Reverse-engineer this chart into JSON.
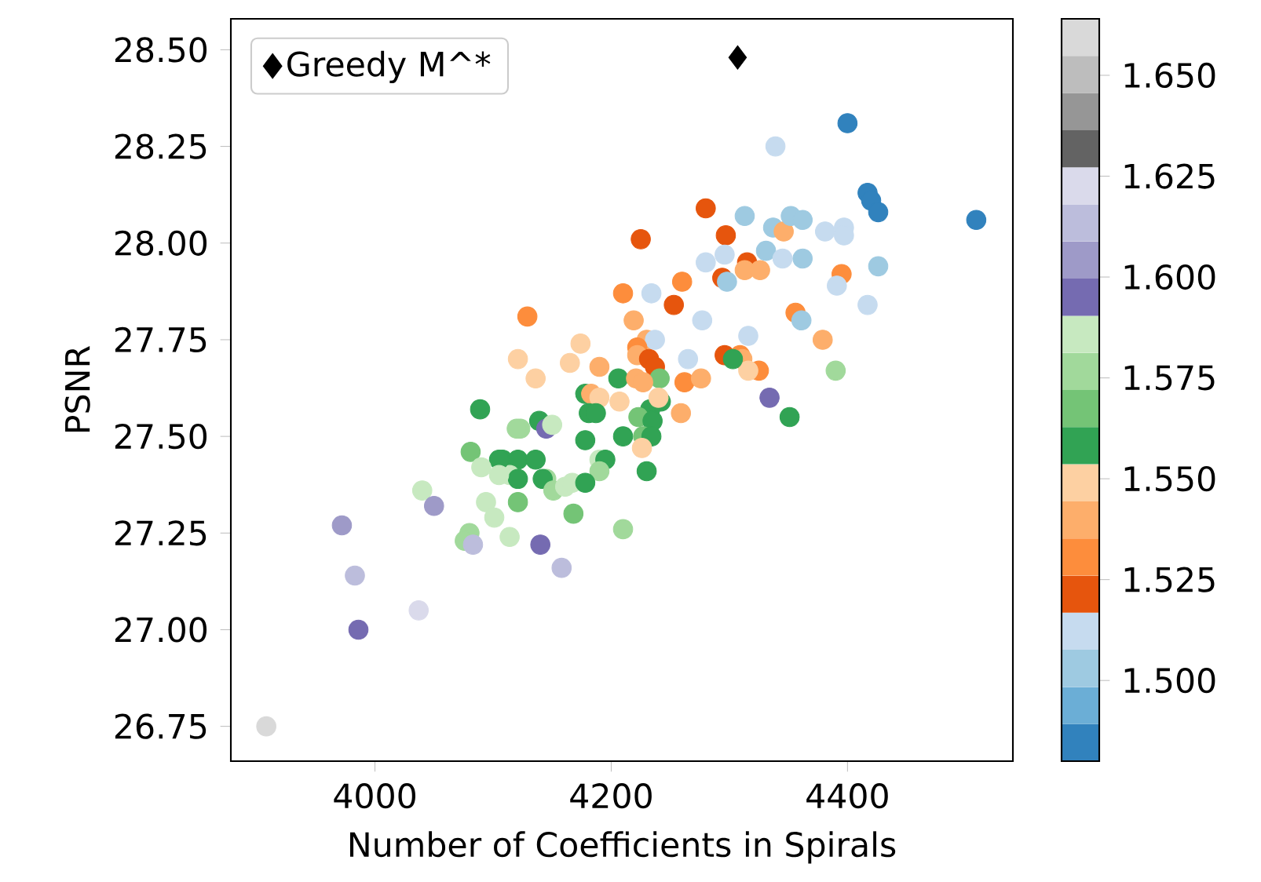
{
  "chart_data": {
    "type": "scatter",
    "xlabel": "Number of Coefficients in Spirals",
    "ylabel": "PSNR",
    "xlim": [
      3878,
      4540
    ],
    "ylim": [
      26.66,
      28.58
    ],
    "xticks": [
      4000,
      4200,
      4400
    ],
    "yticks": [
      {
        "value": 26.75,
        "label": "26.75"
      },
      {
        "value": 27.0,
        "label": "27.00"
      },
      {
        "value": 27.25,
        "label": "27.25"
      },
      {
        "value": 27.5,
        "label": "27.50"
      },
      {
        "value": 27.75,
        "label": "27.75"
      },
      {
        "value": 28.0,
        "label": "28.00"
      },
      {
        "value": 28.25,
        "label": "28.25"
      },
      {
        "value": 28.5,
        "label": "28.50"
      }
    ],
    "clim": [
      1.48,
      1.664
    ],
    "cticks": [
      {
        "value": 1.5,
        "label": "1.500"
      },
      {
        "value": 1.525,
        "label": "1.525"
      },
      {
        "value": 1.55,
        "label": "1.550"
      },
      {
        "value": 1.575,
        "label": "1.575"
      },
      {
        "value": 1.6,
        "label": "1.600"
      },
      {
        "value": 1.625,
        "label": "1.625"
      },
      {
        "value": 1.65,
        "label": "1.650"
      }
    ],
    "marker": "circle",
    "legend": "top left",
    "grid": false,
    "series": [
      {
        "type": "scatter",
        "x": [
          4400,
          4339,
          4417,
          4420,
          4426,
          4509,
          4280,
          4313,
          4225,
          4297,
          4337,
          4346,
          4352,
          4362,
          4381,
          4397,
          4397,
          4331,
          4345,
          4362,
          4395,
          4391,
          4426,
          4417,
          4280,
          4296,
          4315,
          4313,
          4326,
          4294,
          4298,
          4260,
          4210,
          4234,
          4253,
          4219,
          4129,
          4277,
          4356,
          4361,
          4379,
          4316,
          4174,
          4121,
          4165,
          4190,
          4136,
          4230,
          4237,
          4222,
          4222,
          4232,
          4237,
          4265,
          4296,
          4309,
          4311,
          4325,
          4316,
          4303,
          4390,
          4241,
          4206,
          4221,
          4227,
          4262,
          4276,
          4334,
          4351,
          4178,
          4183,
          4190,
          4207,
          4242,
          4233,
          4259,
          4181,
          4187,
          4223,
          4235,
          4139,
          4123,
          4145,
          4240,
          4150,
          4178,
          4210,
          4227,
          4234,
          4226,
          4108,
          4121,
          4136,
          4190,
          4195,
          4190,
          4230,
          4114,
          4121,
          4145,
          4142,
          4151,
          4161,
          4167,
          4178,
          4121,
          4168,
          4210,
          4114,
          4140,
          4158,
          4089,
          4120,
          4081,
          4105,
          4090,
          4105,
          4040,
          4050,
          4094,
          4101,
          4080,
          4076,
          4083,
          3972,
          3983,
          4037,
          3986,
          3908
        ],
        "values": [
          28.31,
          28.25,
          28.13,
          28.11,
          28.08,
          28.06,
          28.09,
          28.07,
          28.01,
          28.02,
          28.04,
          28.03,
          28.07,
          28.06,
          28.03,
          28.04,
          28.02,
          27.98,
          27.96,
          27.96,
          27.92,
          27.89,
          27.94,
          27.84,
          27.95,
          27.97,
          27.95,
          27.93,
          27.93,
          27.91,
          27.9,
          27.9,
          27.87,
          27.87,
          27.84,
          27.8,
          27.81,
          27.8,
          27.82,
          27.8,
          27.75,
          27.76,
          27.74,
          27.7,
          27.69,
          27.68,
          27.65,
          27.75,
          27.75,
          27.73,
          27.71,
          27.7,
          27.68,
          27.7,
          27.71,
          27.71,
          27.7,
          27.67,
          27.67,
          27.7,
          27.67,
          27.65,
          27.65,
          27.65,
          27.64,
          27.64,
          27.65,
          27.6,
          27.55,
          27.61,
          27.61,
          27.6,
          27.59,
          27.59,
          27.57,
          27.56,
          27.56,
          27.56,
          27.55,
          27.54,
          27.54,
          27.52,
          27.52,
          27.6,
          27.53,
          27.49,
          27.5,
          27.5,
          27.5,
          27.47,
          27.44,
          27.44,
          27.44,
          27.44,
          27.44,
          27.41,
          27.41,
          27.4,
          27.39,
          27.39,
          27.39,
          27.36,
          27.37,
          27.38,
          27.38,
          27.33,
          27.3,
          27.26,
          27.24,
          27.22,
          27.16,
          27.57,
          27.52,
          27.46,
          27.44,
          27.42,
          27.4,
          27.36,
          27.32,
          27.33,
          27.29,
          27.25,
          27.23,
          27.22,
          27.27,
          27.14,
          27.05,
          27.0,
          26.75
        ],
        "cvalues": [
          1.485,
          1.512,
          1.485,
          1.485,
          1.485,
          1.485,
          1.521,
          1.503,
          1.521,
          1.521,
          1.503,
          1.54,
          1.503,
          1.503,
          1.512,
          1.512,
          1.512,
          1.503,
          1.512,
          1.503,
          1.531,
          1.512,
          1.503,
          1.512,
          1.512,
          1.512,
          1.521,
          1.54,
          1.54,
          1.521,
          1.503,
          1.531,
          1.531,
          1.512,
          1.521,
          1.54,
          1.531,
          1.512,
          1.531,
          1.503,
          1.54,
          1.512,
          1.549,
          1.549,
          1.549,
          1.54,
          1.549,
          1.54,
          1.512,
          1.531,
          1.54,
          1.521,
          1.521,
          1.512,
          1.521,
          1.531,
          1.54,
          1.531,
          1.549,
          1.558,
          1.577,
          1.567,
          1.558,
          1.54,
          1.54,
          1.531,
          1.54,
          1.595,
          1.558,
          1.558,
          1.54,
          1.549,
          1.549,
          1.558,
          1.558,
          1.54,
          1.558,
          1.558,
          1.567,
          1.558,
          1.558,
          1.577,
          1.595,
          1.549,
          1.586,
          1.558,
          1.558,
          1.567,
          1.558,
          1.549,
          1.558,
          1.558,
          1.558,
          1.586,
          1.558,
          1.577,
          1.558,
          1.586,
          1.558,
          1.577,
          1.558,
          1.577,
          1.586,
          1.586,
          1.558,
          1.567,
          1.567,
          1.577,
          1.586,
          1.595,
          1.613,
          1.558,
          1.577,
          1.567,
          1.558,
          1.586,
          1.586,
          1.586,
          1.604,
          1.586,
          1.586,
          1.577,
          1.577,
          1.613,
          1.604,
          1.613,
          1.623,
          1.595,
          1.659
        ],
        "colors": [
          "#3182bd",
          "#c6dbef",
          "#3182bd",
          "#3182bd",
          "#3182bd",
          "#3182bd",
          "#e6550d",
          "#9ecae1",
          "#e6550d",
          "#e6550d",
          "#9ecae1",
          "#fdae6b",
          "#9ecae1",
          "#9ecae1",
          "#c6dbef",
          "#c6dbef",
          "#c6dbef",
          "#9ecae1",
          "#c6dbef",
          "#9ecae1",
          "#fd8d3c",
          "#c6dbef",
          "#9ecae1",
          "#c6dbef",
          "#c6dbef",
          "#c6dbef",
          "#e6550d",
          "#fdae6b",
          "#fdae6b",
          "#e6550d",
          "#9ecae1",
          "#fd8d3c",
          "#fd8d3c",
          "#c6dbef",
          "#e6550d",
          "#fdae6b",
          "#fd8d3c",
          "#c6dbef",
          "#fd8d3c",
          "#9ecae1",
          "#fdae6b",
          "#c6dbef",
          "#fdd0a2",
          "#fdd0a2",
          "#fdd0a2",
          "#fdae6b",
          "#fdd0a2",
          "#fdae6b",
          "#c6dbef",
          "#fd8d3c",
          "#fdae6b",
          "#e6550d",
          "#e6550d",
          "#c6dbef",
          "#e6550d",
          "#fd8d3c",
          "#fdae6b",
          "#fd8d3c",
          "#fdd0a2",
          "#31a354",
          "#a1d99b",
          "#74c476",
          "#31a354",
          "#fdae6b",
          "#fdae6b",
          "#fd8d3c",
          "#fdae6b",
          "#756bb1",
          "#31a354",
          "#31a354",
          "#fdae6b",
          "#fdd0a2",
          "#fdd0a2",
          "#31a354",
          "#31a354",
          "#fdae6b",
          "#31a354",
          "#31a354",
          "#74c476",
          "#31a354",
          "#31a354",
          "#a1d99b",
          "#756bb1",
          "#fdd0a2",
          "#c7e9c0",
          "#31a354",
          "#31a354",
          "#74c476",
          "#31a354",
          "#fdd0a2",
          "#31a354",
          "#31a354",
          "#31a354",
          "#c7e9c0",
          "#31a354",
          "#a1d99b",
          "#31a354",
          "#c7e9c0",
          "#31a354",
          "#a1d99b",
          "#31a354",
          "#a1d99b",
          "#c7e9c0",
          "#c7e9c0",
          "#31a354",
          "#74c476",
          "#74c476",
          "#a1d99b",
          "#c7e9c0",
          "#756bb1",
          "#bcbddc",
          "#31a354",
          "#a1d99b",
          "#74c476",
          "#31a354",
          "#c7e9c0",
          "#c7e9c0",
          "#c7e9c0",
          "#9e9ac8",
          "#c7e9c0",
          "#c7e9c0",
          "#a1d99b",
          "#a1d99b",
          "#bcbddc",
          "#9e9ac8",
          "#bcbddc",
          "#dadaeb",
          "#756bb1",
          "#d9d9d9"
        ]
      },
      {
        "type": "scatter",
        "name": "Greedy M^*",
        "color": "#000000",
        "marker": "diamond",
        "x": [
          4307
        ],
        "values": [
          28.48
        ]
      }
    ]
  }
}
